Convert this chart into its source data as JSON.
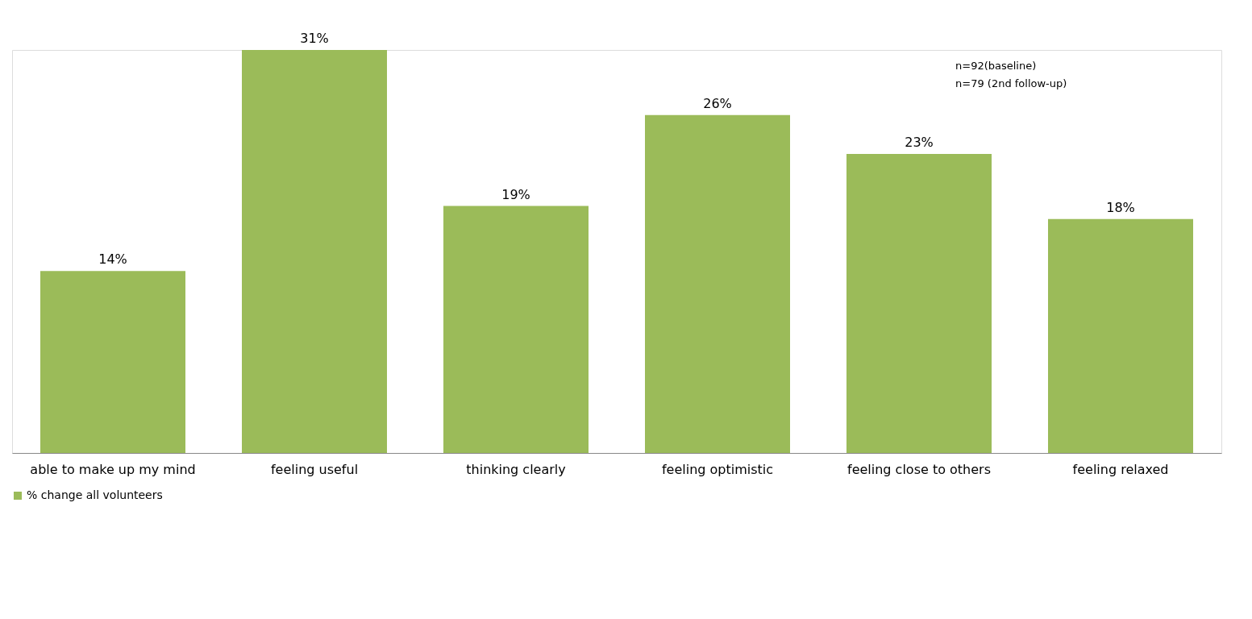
{
  "chart_data": {
    "type": "bar",
    "categories": [
      "able to make up my mind",
      "feeling useful",
      "thinking clearly",
      "feeling optimistic",
      "feeling close to others",
      "feeling relaxed"
    ],
    "series": [
      {
        "name": "% change all volunteers",
        "color": "#9bbb59",
        "values": [
          14,
          31,
          19,
          26,
          23,
          18
        ],
        "value_labels": [
          "14%",
          "31%",
          "19%",
          "26%",
          "23%",
          "18%"
        ]
      }
    ],
    "annotations": [
      "n=92(baseline)",
      "n=79 (2nd follow-up)"
    ],
    "legend": "bottom",
    "grid": false
  }
}
